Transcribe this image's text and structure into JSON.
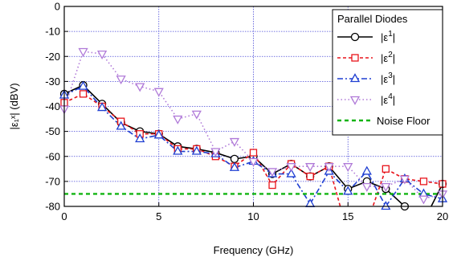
{
  "chart_data": {
    "type": "line",
    "xlabel": "Frequency (GHz)",
    "ylabel": "|ε₁ˣ| (dBV)",
    "xlim": [
      0,
      20
    ],
    "ylim": [
      -80,
      0
    ],
    "xticks": [
      0,
      5,
      10,
      15,
      20
    ],
    "yticks": [
      0,
      -10,
      -20,
      -30,
      -40,
      -50,
      -60,
      -70,
      -80
    ],
    "grid": true,
    "legend": {
      "title": "Parallel Diodes",
      "placement": "top-right"
    },
    "series": [
      {
        "name": "|ε1|",
        "base": "|ε",
        "sup": "1",
        "tail": "|",
        "color": "#000000",
        "dash": "solid",
        "marker": "circle",
        "x": [
          0,
          1,
          2,
          3,
          4,
          5,
          6,
          7,
          8,
          9,
          10,
          11,
          12,
          13,
          14,
          15,
          16,
          17,
          18,
          19,
          20
        ],
        "y": [
          -35,
          -31.5,
          -39,
          -46.5,
          -50,
          -51,
          -56,
          -57,
          -58.5,
          -61,
          -60,
          -67,
          -63,
          -68,
          -64,
          -73,
          -70,
          -73,
          -80,
          -86,
          -71
        ]
      },
      {
        "name": "|ε2|",
        "base": "|ε",
        "sup": "2",
        "tail": "|",
        "color": "#e8141b",
        "dash": "4,3",
        "marker": "square",
        "x": [
          0,
          1,
          2,
          3,
          4,
          5,
          6,
          7,
          8,
          9,
          10,
          11,
          12,
          13,
          14,
          15,
          16,
          17,
          18,
          19,
          20
        ],
        "y": [
          -38.5,
          -35,
          -40,
          -46,
          -51,
          -51,
          -57,
          -57,
          -60,
          -64,
          -58.5,
          -71.5,
          -63,
          -68,
          -64,
          -91,
          -87,
          -65,
          -69,
          -70,
          -71
        ]
      },
      {
        "name": "|ε3|",
        "base": "|ε",
        "sup": "3",
        "tail": "|",
        "color": "#1f3fd2",
        "dash": "7,3,2,3",
        "marker": "triangle-up",
        "x": [
          0,
          1,
          2,
          3,
          4,
          5,
          6,
          7,
          8,
          9,
          10,
          11,
          12,
          13,
          14,
          15,
          16,
          17,
          18,
          19,
          20
        ],
        "y": [
          -35.5,
          -32,
          -40.5,
          -48,
          -53,
          -51.5,
          -58,
          -58,
          -59,
          -64.5,
          -62,
          -67,
          -67,
          -79,
          -66,
          -74,
          -66,
          -80,
          -69,
          -75,
          -77
        ]
      },
      {
        "name": "|ε4|",
        "base": "|ε",
        "sup": "4",
        "tail": "|",
        "color": "#b07ad8",
        "dash": "1.5,3",
        "marker": "triangle-down",
        "x": [
          0,
          1,
          2,
          3,
          4,
          5,
          6,
          7,
          8,
          9,
          10,
          11,
          12,
          13,
          14,
          15,
          16,
          17,
          18,
          19,
          20
        ],
        "y": [
          -41,
          -18,
          -19,
          -29,
          -32,
          -34,
          -45,
          -43,
          -58,
          -54,
          -62,
          -66,
          -64,
          -64,
          -64,
          -64,
          -72,
          -72,
          -69,
          -77,
          -75
        ]
      },
      {
        "name": "Noise Floor",
        "color": "#12b412",
        "dash": "5,4",
        "marker": "none",
        "x": [
          0,
          20
        ],
        "y": [
          -75,
          -75
        ]
      }
    ]
  }
}
